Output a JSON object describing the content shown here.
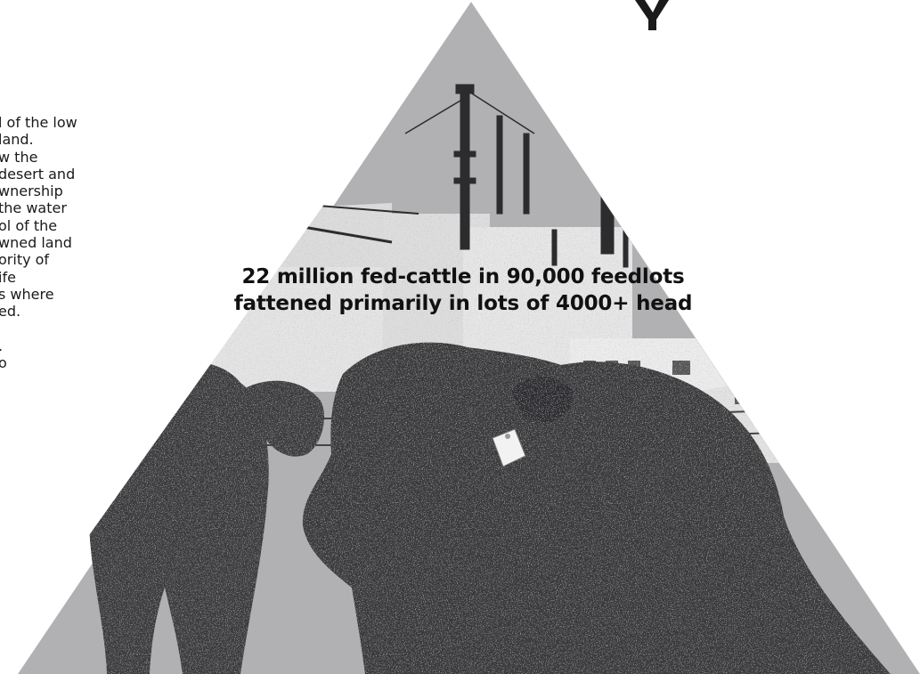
{
  "colors": {
    "triangle": "#b0b0b2",
    "cattle": "#3c3c3e",
    "building": "#e8e8e8",
    "text": "#111111"
  },
  "left_column": {
    "lines": [
      "l of the low",
      "land.",
      "w the",
      "desert and",
      "wnership",
      "the water",
      "ol of the",
      "wned land",
      "ority of",
      "ife",
      "s where",
      "ed.",
      "",
      ".",
      "o"
    ]
  },
  "callout": {
    "line1": "22 million fed-cattle in 90,000 feedlots",
    "line2": "fattened primarily in lots of 4000+ head"
  }
}
